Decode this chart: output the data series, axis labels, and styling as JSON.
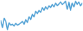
{
  "values": [
    30,
    15,
    35,
    28,
    10,
    25,
    20,
    22,
    18,
    24,
    20,
    22,
    25,
    28,
    22,
    32,
    26,
    38,
    32,
    44,
    38,
    50,
    45,
    52,
    48,
    58,
    52,
    60,
    55,
    62,
    58,
    65,
    60,
    68,
    62,
    66,
    70,
    65,
    68,
    72,
    55,
    70,
    52,
    68,
    60,
    72,
    65,
    70,
    62,
    68
  ],
  "line_color": "#4d9fd4",
  "background_color": "#ffffff",
  "linewidth": 1.2
}
